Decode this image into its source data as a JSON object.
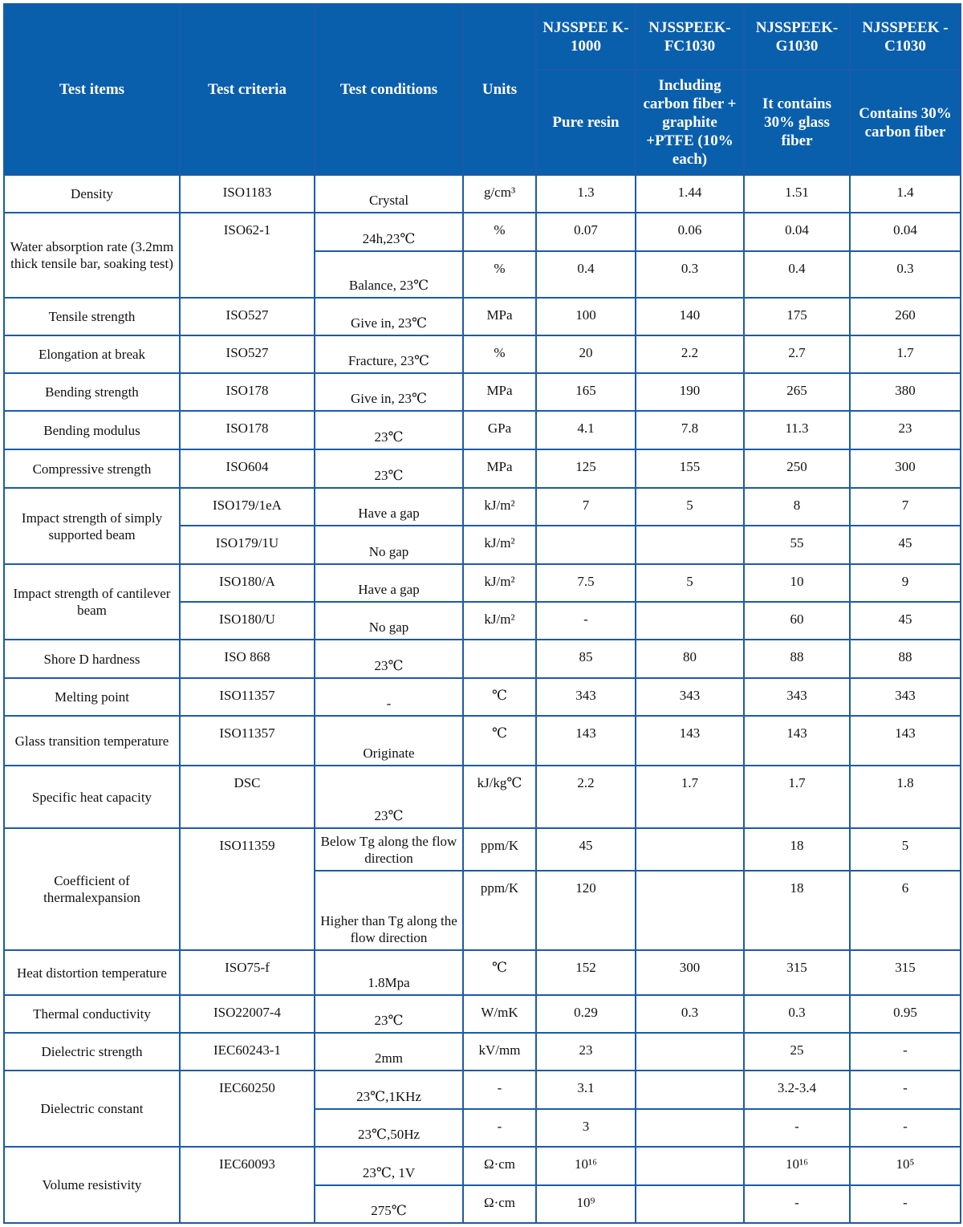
{
  "header": {
    "test_items": "Test items",
    "test_criteria": "Test criteria",
    "test_conditions": "Test conditions",
    "units": "Units",
    "products": [
      {
        "name": "NJSSPEEK-1000",
        "name_display": "NJSSPEE K-1000",
        "description": "Pure resin"
      },
      {
        "name": "NJSSPEEK-FC1030",
        "name_display": "NJSSPEEK- FC1030",
        "description": "Including carbon fiber + graphite +PTFE (10% each)"
      },
      {
        "name": "NJSSPEEK-G1030",
        "name_display": "NJSSPEEK- G1030",
        "description": "It contains 30% glass fiber"
      },
      {
        "name": "NJSSPEEK-C1030",
        "name_display": "NJSSPEEK -C1030",
        "description": "Contains 30% carbon fiber"
      }
    ]
  },
  "colors": {
    "header_bg": "#0a5fad",
    "border": "#1b5ba8",
    "header_text": "#ffffff"
  },
  "rows": [
    {
      "item": "Density",
      "criteria": "ISO1183",
      "sub": [
        {
          "cond": "Crystal",
          "unit": "g/cm³",
          "values": [
            "1.3",
            "1.44",
            "1.51",
            "1.4"
          ]
        }
      ]
    },
    {
      "item": "Water absorption rate (3.2mm thick tensile bar, soaking test)",
      "criteria": "ISO62-1",
      "sub": [
        {
          "cond": "24h,23℃",
          "unit": "%",
          "values": [
            "0.07",
            "0.06",
            "0.04",
            "0.04"
          ]
        },
        {
          "cond": "Balance, 23℃",
          "unit": "%",
          "values": [
            "0.4",
            "0.3",
            "0.4",
            "0.3"
          ]
        }
      ]
    },
    {
      "item": "Tensile strength",
      "criteria": "ISO527",
      "sub": [
        {
          "cond": "Give in, 23℃",
          "unit": "MPa",
          "values": [
            "100",
            "140",
            "175",
            "260"
          ]
        }
      ]
    },
    {
      "item": "Elongation at break",
      "criteria": "ISO527",
      "sub": [
        {
          "cond": "Fracture, 23℃",
          "unit": "%",
          "values": [
            "20",
            "2.2",
            "2.7",
            "1.7"
          ]
        }
      ]
    },
    {
      "item": "Bending strength",
      "criteria": "ISO178",
      "sub": [
        {
          "cond": "Give in, 23℃",
          "unit": "MPa",
          "values": [
            "165",
            "190",
            "265",
            "380"
          ]
        }
      ]
    },
    {
      "item": "Bending modulus",
      "criteria": "ISO178",
      "sub": [
        {
          "cond": "23℃",
          "unit": "GPa",
          "values": [
            "4.1",
            "7.8",
            "11.3",
            "23"
          ]
        }
      ]
    },
    {
      "item": "Compressive strength",
      "criteria": "ISO604",
      "sub": [
        {
          "cond": "23℃",
          "unit": "MPa",
          "values": [
            "125",
            "155",
            "250",
            "300"
          ]
        }
      ]
    },
    {
      "item": "Impact strength of simply supported beam",
      "sub": [
        {
          "criteria": "ISO179/1eA",
          "cond": "Have a gap",
          "unit": "kJ/m²",
          "values": [
            "7",
            "5",
            "8",
            "7"
          ]
        },
        {
          "criteria": "ISO179/1U",
          "cond": "No gap",
          "unit": "kJ/m²",
          "values": [
            "",
            "",
            "55",
            "45"
          ]
        }
      ]
    },
    {
      "item": "Impact strength of cantilever beam",
      "sub": [
        {
          "criteria": "ISO180/A",
          "cond": "Have a gap",
          "unit": "kJ/m²",
          "values": [
            "7.5",
            "5",
            "10",
            "9"
          ]
        },
        {
          "criteria": "ISO180/U",
          "cond": "No gap",
          "unit": "kJ/m²",
          "values": [
            "-",
            "",
            "60",
            "45"
          ]
        }
      ]
    },
    {
      "item": "Shore D hardness",
      "criteria": "ISO 868",
      "sub": [
        {
          "cond": "23℃",
          "unit": "",
          "values": [
            "85",
            "80",
            "88",
            "88"
          ]
        }
      ]
    },
    {
      "item": "Melting point",
      "criteria": "ISO11357",
      "sub": [
        {
          "cond": "-",
          "unit": "℃",
          "values": [
            "343",
            "343",
            "343",
            "343"
          ]
        }
      ]
    },
    {
      "item": "Glass transition temperature",
      "criteria": "ISO11357",
      "sub": [
        {
          "cond": "Originate",
          "unit": "℃",
          "values": [
            "143",
            "143",
            "143",
            "143"
          ]
        }
      ]
    },
    {
      "item": "Specific heat capacity",
      "criteria": "DSC",
      "sub": [
        {
          "cond": "23℃",
          "unit": "kJ/kg℃",
          "values": [
            "2.2",
            "1.7",
            "1.7",
            "1.8"
          ]
        }
      ]
    },
    {
      "item": "Coefficient of thermalexpansion",
      "criteria": "ISO11359",
      "sub": [
        {
          "cond": "Below Tg along the flow direction",
          "unit": "ppm/K",
          "values": [
            "45",
            "",
            "18",
            "5"
          ]
        },
        {
          "cond": "Higher than Tg along the flow direction",
          "unit": "ppm/K",
          "values": [
            "120",
            "",
            "18",
            "6"
          ]
        }
      ]
    },
    {
      "item": "Heat distortion temperature",
      "criteria": "ISO75-f",
      "sub": [
        {
          "cond": "1.8Mpa",
          "unit": "℃",
          "values": [
            "152",
            "300",
            "315",
            "315"
          ]
        }
      ]
    },
    {
      "item": "Thermal conductivity",
      "criteria": "ISO22007-4",
      "sub": [
        {
          "cond": "23℃",
          "unit": "W/mK",
          "values": [
            "0.29",
            "0.3",
            "0.3",
            "0.95"
          ]
        }
      ]
    },
    {
      "item": "Dielectric strength",
      "criteria": "IEC60243-1",
      "sub": [
        {
          "cond": "2mm",
          "unit": "kV/mm",
          "values": [
            "23",
            "",
            "25",
            "-"
          ]
        }
      ]
    },
    {
      "item": "Dielectric constant",
      "criteria": "IEC60250",
      "sub": [
        {
          "cond": "23℃,1KHz",
          "unit": "-",
          "values": [
            "3.1",
            "",
            "3.2-3.4",
            "-"
          ]
        },
        {
          "cond": "23℃,50Hz",
          "unit": "-",
          "values": [
            "3",
            "",
            "-",
            "-"
          ]
        }
      ]
    },
    {
      "item": "Volume resistivity",
      "criteria": "IEC60093",
      "sub": [
        {
          "cond": "23℃, 1V",
          "unit": "Ω·cm",
          "values": [
            "10¹⁶",
            "",
            "10¹⁶",
            "10⁵"
          ]
        },
        {
          "cond": "275℃",
          "unit": "Ω·cm",
          "values": [
            "10⁹",
            "",
            "-",
            "-"
          ]
        }
      ]
    }
  ]
}
